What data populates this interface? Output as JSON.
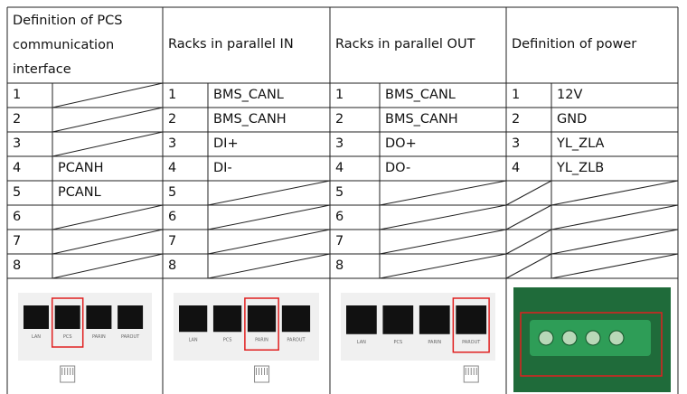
{
  "table": {
    "headers": [
      "Definition of PCS communication interface",
      "Racks in parallel IN",
      "Racks in parallel OUT",
      "Definition of power"
    ],
    "rows": [
      [
        1,
        null,
        1,
        "BMS_CANL",
        1,
        "BMS_CANL",
        1,
        "12V"
      ],
      [
        2,
        null,
        2,
        "BMS_CANH",
        2,
        "BMS_CANH",
        2,
        "GND"
      ],
      [
        3,
        null,
        3,
        "DI+",
        3,
        "DO+",
        3,
        "YL_ZLA"
      ],
      [
        4,
        "PCANH",
        4,
        "DI-",
        4,
        "DO-",
        4,
        "YL_ZLB"
      ],
      [
        5,
        "PCANL",
        5,
        null,
        5,
        null,
        null,
        null
      ],
      [
        6,
        null,
        6,
        null,
        6,
        null,
        null,
        null
      ],
      [
        7,
        null,
        7,
        null,
        7,
        null,
        null,
        null
      ],
      [
        8,
        null,
        8,
        null,
        8,
        null,
        null,
        null
      ]
    ]
  },
  "images": [
    {
      "ports": [
        "LAN",
        "PCS",
        "PARIN",
        "PAROUT"
      ]
    },
    {
      "ports": [
        "LAN",
        "PCS",
        "PARIN",
        "PAROUT"
      ]
    },
    {
      "ports": [
        "LAN",
        "PCS",
        "PARIN",
        "PAROUT"
      ]
    }
  ]
}
